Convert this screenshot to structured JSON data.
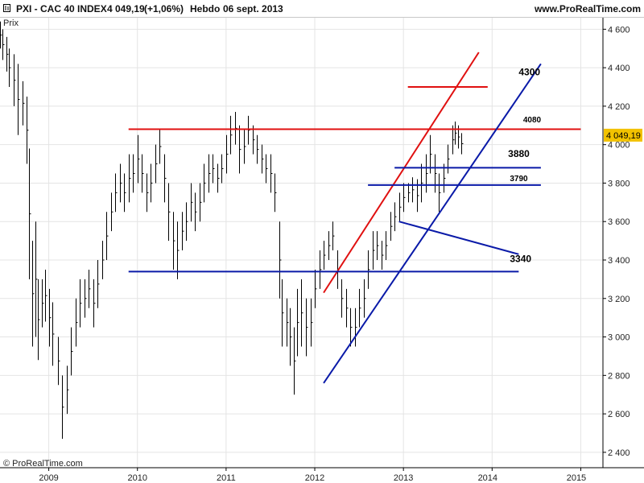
{
  "header": {
    "title": "PXI - CAC 40 INDEX",
    "price": "4 049,19",
    "change": "(+1,06%)",
    "timeframe": "Hebdo",
    "date": "06 sept. 2013",
    "site": "www.ProRealTime.com"
  },
  "colors": {
    "support": "#0a1aa8",
    "resistance": "#e01010",
    "bars": "#000000",
    "grid": "#e4e4e4",
    "price_tag_bg": "#f2c200"
  },
  "chart_data": {
    "type": "line",
    "title": "PXI - CAC 40 INDEX",
    "ylabel": "Prix",
    "xlabel": "",
    "ylim": [
      2320,
      4660
    ],
    "xlim": [
      2008.45,
      2015.25
    ],
    "y_ticks": [
      "2 400",
      "2 600",
      "2 800",
      "3 000",
      "3 200",
      "3 400",
      "3 600",
      "3 800",
      "4 000",
      "4 200",
      "4 400",
      "4 600"
    ],
    "y_tick_values": [
      2400,
      2600,
      2800,
      3000,
      3200,
      3400,
      3600,
      3800,
      4000,
      4200,
      4400,
      4600
    ],
    "x_ticks": [
      "2009",
      "2010",
      "2011",
      "2012",
      "2013",
      "2014",
      "2015"
    ],
    "x_tick_values": [
      2009.0,
      2010.0,
      2011.0,
      2012.0,
      2013.0,
      2014.0,
      2015.0
    ],
    "x_label_values": [
      2009.0,
      2010.0,
      2011.0,
      2012.0,
      2013.0,
      2013.95,
      2014.95
    ],
    "grid": true,
    "last_value_label": "4 049,19",
    "last_value": 4049.19,
    "series": [
      {
        "style": "weekly high-low bars",
        "points": [
          [
            2008.45,
            4500,
            4640
          ],
          [
            2008.48,
            4440,
            4600
          ],
          [
            2008.52,
            4380,
            4560
          ],
          [
            2008.55,
            4300,
            4500
          ],
          [
            2008.6,
            4200,
            4470
          ],
          [
            2008.65,
            4050,
            4420
          ],
          [
            2008.7,
            4100,
            4330
          ],
          [
            2008.75,
            3900,
            4250
          ],
          [
            2008.78,
            3300,
            3980
          ],
          [
            2008.81,
            2950,
            3500
          ],
          [
            2008.85,
            3000,
            3600
          ],
          [
            2008.88,
            2880,
            3300
          ],
          [
            2008.92,
            3050,
            3300
          ],
          [
            2008.96,
            3080,
            3350
          ],
          [
            2009.0,
            2950,
            3250
          ],
          [
            2009.04,
            2850,
            3180
          ],
          [
            2009.1,
            2750,
            3000
          ],
          [
            2009.15,
            2470,
            2800
          ],
          [
            2009.2,
            2600,
            2850
          ],
          [
            2009.25,
            2800,
            3050
          ],
          [
            2009.3,
            2950,
            3200
          ],
          [
            2009.35,
            3050,
            3300
          ],
          [
            2009.4,
            3100,
            3300
          ],
          [
            2009.45,
            3150,
            3350
          ],
          [
            2009.5,
            3050,
            3300
          ],
          [
            2009.55,
            3150,
            3400
          ],
          [
            2009.6,
            3300,
            3500
          ],
          [
            2009.65,
            3400,
            3650
          ],
          [
            2009.7,
            3550,
            3750
          ],
          [
            2009.75,
            3650,
            3850
          ],
          [
            2009.8,
            3700,
            3900
          ],
          [
            2009.85,
            3650,
            3850
          ],
          [
            2009.9,
            3700,
            3950
          ],
          [
            2009.95,
            3750,
            3950
          ],
          [
            2010.0,
            3800,
            4050
          ],
          [
            2010.05,
            3750,
            3950
          ],
          [
            2010.1,
            3650,
            3850
          ],
          [
            2010.15,
            3700,
            3900
          ],
          [
            2010.2,
            3800,
            4000
          ],
          [
            2010.25,
            3900,
            4080
          ],
          [
            2010.3,
            3700,
            3950
          ],
          [
            2010.35,
            3500,
            3800
          ],
          [
            2010.4,
            3350,
            3650
          ],
          [
            2010.45,
            3300,
            3600
          ],
          [
            2010.5,
            3450,
            3650
          ],
          [
            2010.55,
            3500,
            3700
          ],
          [
            2010.6,
            3600,
            3800
          ],
          [
            2010.65,
            3550,
            3750
          ],
          [
            2010.7,
            3600,
            3800
          ],
          [
            2010.75,
            3700,
            3900
          ],
          [
            2010.8,
            3750,
            3950
          ],
          [
            2010.85,
            3800,
            3950
          ],
          [
            2010.9,
            3750,
            3900
          ],
          [
            2010.95,
            3800,
            3950
          ],
          [
            2011.0,
            3850,
            4050
          ],
          [
            2011.05,
            3950,
            4150
          ],
          [
            2011.1,
            4000,
            4170
          ],
          [
            2011.15,
            3850,
            4100
          ],
          [
            2011.2,
            3900,
            4080
          ],
          [
            2011.25,
            4000,
            4150
          ],
          [
            2011.3,
            3950,
            4100
          ],
          [
            2011.35,
            3900,
            4050
          ],
          [
            2011.4,
            3850,
            4000
          ],
          [
            2011.45,
            3800,
            3950
          ],
          [
            2011.5,
            3750,
            3950
          ],
          [
            2011.55,
            3650,
            3850
          ],
          [
            2011.6,
            3200,
            3600
          ],
          [
            2011.63,
            2950,
            3300
          ],
          [
            2011.68,
            2950,
            3200
          ],
          [
            2011.72,
            2850,
            3150
          ],
          [
            2011.76,
            2700,
            3050
          ],
          [
            2011.8,
            2900,
            3250
          ],
          [
            2011.85,
            2950,
            3300
          ],
          [
            2011.9,
            2900,
            3200
          ],
          [
            2011.95,
            2950,
            3200
          ],
          [
            2012.0,
            3150,
            3350
          ],
          [
            2012.05,
            3250,
            3450
          ],
          [
            2012.1,
            3350,
            3500
          ],
          [
            2012.15,
            3400,
            3550
          ],
          [
            2012.2,
            3450,
            3600
          ],
          [
            2012.25,
            3250,
            3450
          ],
          [
            2012.3,
            3100,
            3300
          ],
          [
            2012.35,
            3050,
            3250
          ],
          [
            2012.4,
            2950,
            3150
          ],
          [
            2012.45,
            2950,
            3150
          ],
          [
            2012.5,
            3050,
            3250
          ],
          [
            2012.55,
            3100,
            3300
          ],
          [
            2012.6,
            3250,
            3450
          ],
          [
            2012.65,
            3350,
            3550
          ],
          [
            2012.7,
            3400,
            3550
          ],
          [
            2012.75,
            3350,
            3500
          ],
          [
            2012.8,
            3400,
            3550
          ],
          [
            2012.85,
            3500,
            3650
          ],
          [
            2012.9,
            3550,
            3700
          ],
          [
            2012.95,
            3600,
            3750
          ],
          [
            2013.0,
            3650,
            3800
          ],
          [
            2013.05,
            3700,
            3800
          ],
          [
            2013.1,
            3700,
            3830
          ],
          [
            2013.15,
            3650,
            3820
          ],
          [
            2013.2,
            3700,
            3900
          ],
          [
            2013.25,
            3750,
            3950
          ],
          [
            2013.3,
            3850,
            4050
          ],
          [
            2013.35,
            3750,
            3950
          ],
          [
            2013.4,
            3650,
            3850
          ],
          [
            2013.45,
            3750,
            3900
          ],
          [
            2013.5,
            3850,
            4000
          ],
          [
            2013.55,
            3950,
            4100
          ],
          [
            2013.58,
            4000,
            4120
          ],
          [
            2013.62,
            3980,
            4100
          ],
          [
            2013.65,
            3950,
            4060
          ]
        ]
      }
    ],
    "trendlines": [
      {
        "color": "resistance",
        "from": [
          2013.05,
          4300
        ],
        "to": [
          2013.95,
          4300
        ]
      },
      {
        "color": "resistance",
        "from": [
          2009.9,
          4080
        ],
        "to": [
          2015.0,
          4080
        ]
      },
      {
        "color": "resistance",
        "from": [
          2012.1,
          3230
        ],
        "to": [
          2013.85,
          4480
        ]
      },
      {
        "color": "support",
        "from": [
          2012.1,
          2760
        ],
        "to": [
          2014.55,
          4420
        ]
      },
      {
        "color": "support",
        "from": [
          2012.9,
          3880
        ],
        "to": [
          2014.55,
          3880
        ]
      },
      {
        "color": "support",
        "from": [
          2012.6,
          3790
        ],
        "to": [
          2014.55,
          3790
        ]
      },
      {
        "color": "support",
        "from": [
          2012.95,
          3600
        ],
        "to": [
          2014.3,
          3430
        ]
      },
      {
        "color": "support",
        "from": [
          2009.9,
          3340
        ],
        "to": [
          2014.3,
          3340
        ]
      }
    ],
    "annotations": [
      {
        "text": "4300",
        "x": 2014.3,
        "y": 4360,
        "size": "large"
      },
      {
        "text": "4080",
        "x": 2014.35,
        "y": 4115,
        "size": "small"
      },
      {
        "text": "3880",
        "x": 2014.18,
        "y": 3935,
        "size": "large"
      },
      {
        "text": "3790",
        "x": 2014.2,
        "y": 3810,
        "size": "small"
      },
      {
        "text": "3340",
        "x": 2014.2,
        "y": 3390,
        "size": "large"
      }
    ],
    "copyright": "© ProRealTime.com"
  }
}
